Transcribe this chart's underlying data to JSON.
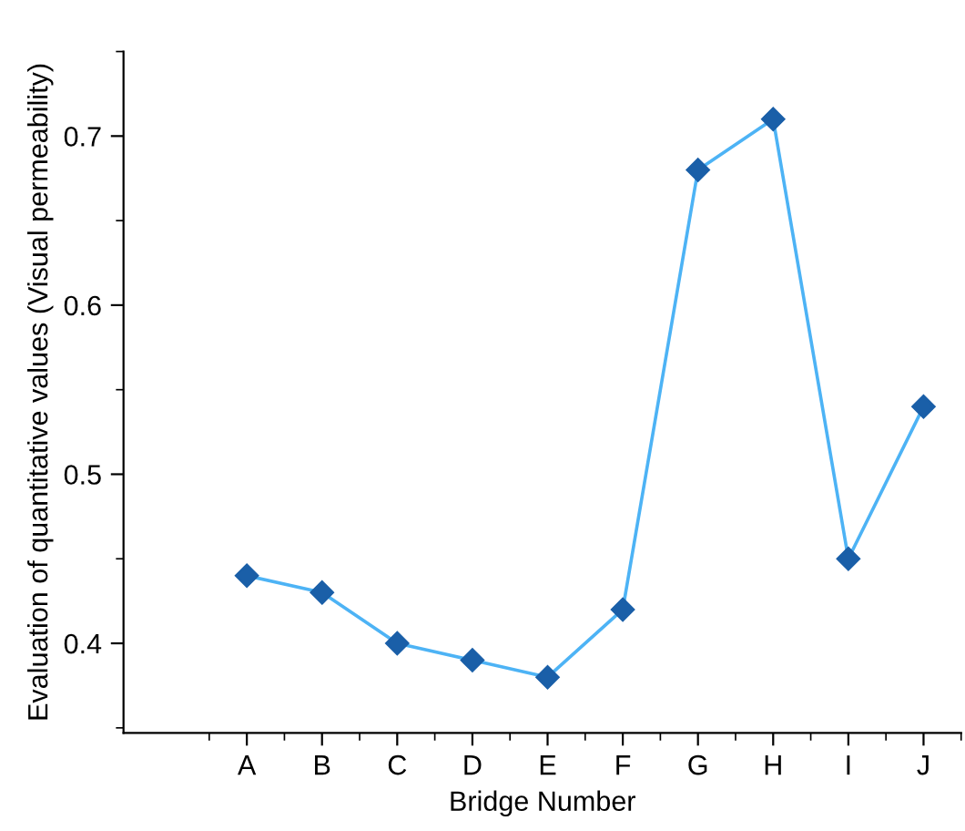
{
  "chart_data": {
    "type": "line",
    "xlabel": "Bridge Number",
    "ylabel": "Evaluation of quantitative values (Visual permeability)",
    "categories": [
      "A",
      "B",
      "C",
      "D",
      "E",
      "F",
      "G",
      "H",
      "I",
      "J"
    ],
    "series": [
      {
        "color": "#4db3f5",
        "values": [
          0.44,
          0.43,
          0.4,
          0.39,
          0.38,
          0.42,
          0.68,
          0.71,
          0.45,
          0.54
        ]
      }
    ],
    "ylim": [
      0.347,
      0.75
    ],
    "yticks": [
      0.4,
      0.5,
      0.6,
      0.7
    ],
    "marker": "diamond",
    "grid": false,
    "legend": false
  }
}
